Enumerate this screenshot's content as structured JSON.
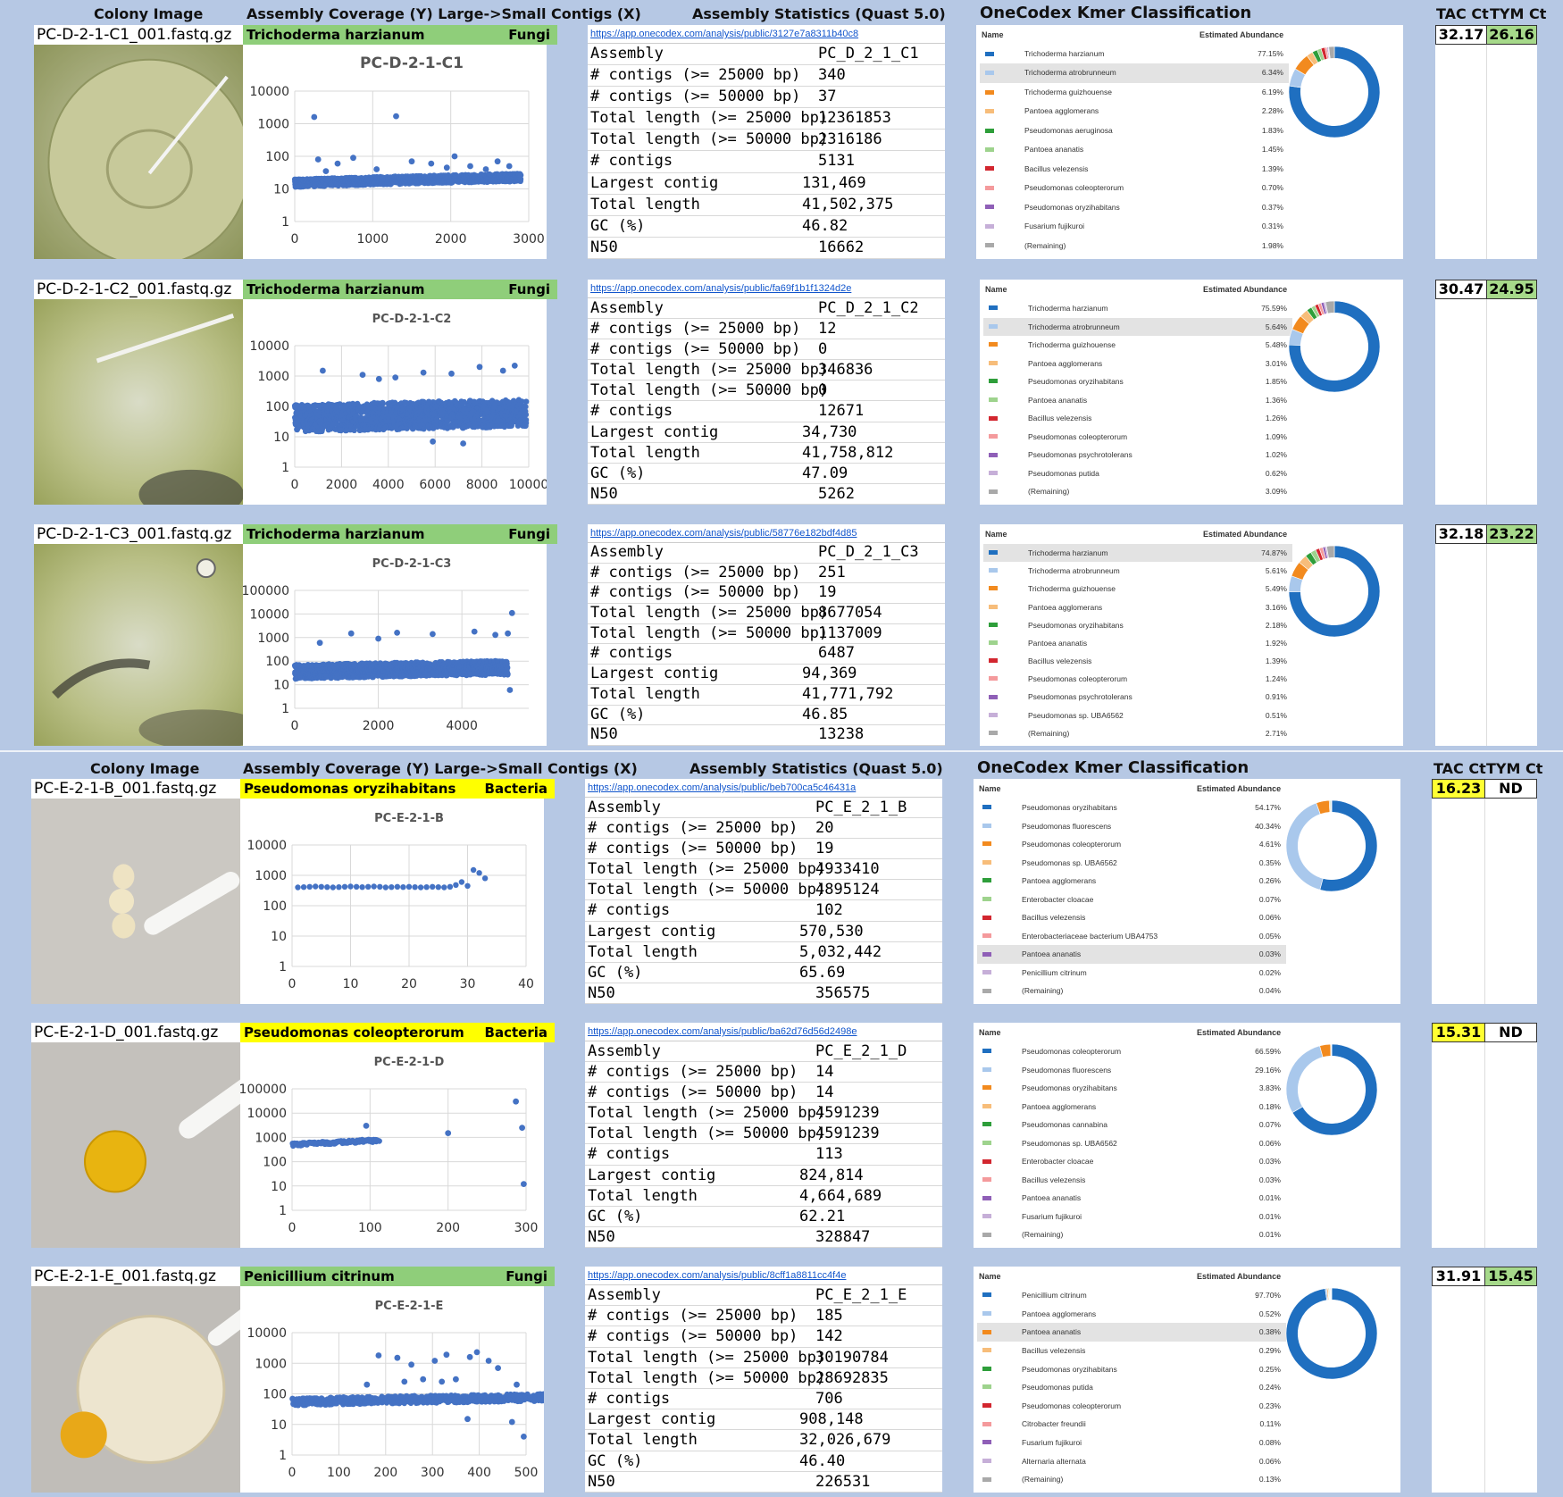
{
  "headers": {
    "colony_image": "Colony Image",
    "assembly_coverage": "Assembly Coverage (Y) Large->Small Contigs (X)",
    "assembly_stats": "Assembly Statistics (Quast 5.0)",
    "onecodex": "OneCodex Kmer Classification",
    "tac_ct": "TAC Ct",
    "tym_ct": "TYM Ct"
  },
  "kmer_headers": {
    "name": "Name",
    "abundance": "Estimated Abundance"
  },
  "stat_labels": [
    "Assembly",
    "# contigs (>= 25000 bp)",
    "# contigs (>= 50000 bp)",
    "Total length (>= 25000 bp)",
    "Total length (>= 50000 bp)",
    "# contigs",
    "Largest contig",
    "Total length",
    "GC (%)",
    "N50"
  ],
  "palette": [
    "#1f6fc0",
    "#a9c8ec",
    "#f28a1e",
    "#f7bd7a",
    "#2e9e3a",
    "#9ed38d",
    "#d2262f",
    "#f49a9c",
    "#8f5fb7",
    "#c6afd8",
    "#a9a9a9"
  ],
  "samples": [
    {
      "file": "PC-D-2-1-C1_001.fastq.gz",
      "organism": "Trichoderma harzianum",
      "kingdom": "Fungi",
      "tax_color": "#8fce7a",
      "chart_title": "PC-D-2-1-C1",
      "url": "https://app.onecodex.com/analysis/public/3127e7a8311b40c8",
      "stats": [
        "PC_D_2_1_C1",
        "340",
        "37",
        "12361853",
        "2316186",
        "5131",
        "131,469",
        "41,502,375",
        "46.82",
        "16662"
      ],
      "kmer": [
        [
          "Trichoderma harzianum",
          "77.15%"
        ],
        [
          "Trichoderma atrobrunneum",
          "6.34%"
        ],
        [
          "Trichoderma guizhouense",
          "6.19%"
        ],
        [
          "Pantoea agglomerans",
          "2.28%"
        ],
        [
          "Pseudomonas aeruginosa",
          "1.83%"
        ],
        [
          "Pantoea ananatis",
          "1.45%"
        ],
        [
          "Bacillus velezensis",
          "1.39%"
        ],
        [
          "Pseudomonas coleopterorum",
          "0.70%"
        ],
        [
          "Pseudomonas oryzihabitans",
          "0.37%"
        ],
        [
          "Fusarium fujikuroi",
          "0.31%"
        ],
        [
          "(Remaining)",
          "1.98%"
        ]
      ],
      "highlight": 1,
      "tac": "32.17",
      "tym": "26.16",
      "tac_color": "#ffffff",
      "tym_color": "#a6d98a",
      "photo": "fungus1"
    },
    {
      "file": "PC-D-2-1-C2_001.fastq.gz",
      "organism": "Trichoderma harzianum",
      "kingdom": "Fungi",
      "tax_color": "#8fce7a",
      "chart_title": "PC-D-2-1-C2",
      "url": "https://app.onecodex.com/analysis/public/fa69f1b1f1324d2e",
      "stats": [
        "PC_D_2_1_C2",
        "12",
        "0",
        "346836",
        "0",
        "12671",
        "34,730",
        "41,758,812",
        "47.09",
        "5262"
      ],
      "kmer": [
        [
          "Trichoderma harzianum",
          "75.59%"
        ],
        [
          "Trichoderma atrobrunneum",
          "5.64%"
        ],
        [
          "Trichoderma guizhouense",
          "5.48%"
        ],
        [
          "Pantoea agglomerans",
          "3.01%"
        ],
        [
          "Pseudomonas oryzihabitans",
          "1.85%"
        ],
        [
          "Pantoea ananatis",
          "1.36%"
        ],
        [
          "Bacillus velezensis",
          "1.26%"
        ],
        [
          "Pseudomonas coleopterorum",
          "1.09%"
        ],
        [
          "Pseudomonas psychrotolerans",
          "1.02%"
        ],
        [
          "Pseudomonas putida",
          "0.62%"
        ],
        [
          "(Remaining)",
          "3.09%"
        ]
      ],
      "highlight": 1,
      "tac": "30.47",
      "tym": "24.95",
      "tac_color": "#ffffff",
      "tym_color": "#a6d98a",
      "photo": "fungus2"
    },
    {
      "file": "PC-D-2-1-C3_001.fastq.gz",
      "organism": "Trichoderma harzianum",
      "kingdom": "Fungi",
      "tax_color": "#8fce7a",
      "chart_title": "PC-D-2-1-C3",
      "url": "https://app.onecodex.com/analysis/public/58776e182bdf4d85",
      "stats": [
        "PC_D_2_1_C3",
        "251",
        "19",
        "8677054",
        "1137009",
        "6487",
        "94,369",
        "41,771,792",
        "46.85",
        "13238"
      ],
      "kmer": [
        [
          "Trichoderma harzianum",
          "74.87%"
        ],
        [
          "Trichoderma atrobrunneum",
          "5.61%"
        ],
        [
          "Trichoderma guizhouense",
          "5.49%"
        ],
        [
          "Pantoea agglomerans",
          "3.16%"
        ],
        [
          "Pseudomonas oryzihabitans",
          "2.18%"
        ],
        [
          "Pantoea ananatis",
          "1.92%"
        ],
        [
          "Bacillus velezensis",
          "1.39%"
        ],
        [
          "Pseudomonas coleopterorum",
          "1.24%"
        ],
        [
          "Pseudomonas psychrotolerans",
          "0.91%"
        ],
        [
          "Pseudomonas sp. UBA6562",
          "0.51%"
        ],
        [
          "(Remaining)",
          "2.71%"
        ]
      ],
      "highlight": 0,
      "tac": "32.18",
      "tym": "23.22",
      "tac_color": "#ffffff",
      "tym_color": "#a6d98a",
      "photo": "fungus3"
    },
    {
      "file": "PC-E-2-1-B_001.fastq.gz",
      "organism": "Pseudomonas oryzihabitans",
      "kingdom": "Bacteria",
      "tax_color": "#ffff00",
      "chart_title": "PC-E-2-1-B",
      "url": "https://app.onecodex.com/analysis/public/beb700ca5c46431a",
      "stats": [
        "PC_E_2_1_B",
        "20",
        "19",
        "4933410",
        "4895124",
        "102",
        "570,530",
        "5,032,442",
        "65.69",
        "356575"
      ],
      "kmer": [
        [
          "Pseudomonas oryzihabitans",
          "54.17%"
        ],
        [
          "Pseudomonas fluorescens",
          "40.34%"
        ],
        [
          "Pseudomonas coleopterorum",
          "4.61%"
        ],
        [
          "Pseudomonas sp. UBA6562",
          "0.35%"
        ],
        [
          "Pantoea agglomerans",
          "0.26%"
        ],
        [
          "Enterobacter cloacae",
          "0.07%"
        ],
        [
          "Bacillus velezensis",
          "0.06%"
        ],
        [
          "Enterobacteriaceae bacterium UBA4753",
          "0.05%"
        ],
        [
          "Pantoea ananatis",
          "0.03%"
        ],
        [
          "Penicillium citrinum",
          "0.02%"
        ],
        [
          "(Remaining)",
          "0.04%"
        ]
      ],
      "highlight": 8,
      "tac": "16.23",
      "tym": "ND",
      "tac_color": "#ffff33",
      "tym_color": "#ffffff",
      "photo": "bact1"
    },
    {
      "file": "PC-E-2-1-D_001.fastq.gz",
      "organism": "Pseudomonas coleopterorum",
      "kingdom": "Bacteria",
      "tax_color": "#ffff00",
      "chart_title": "PC-E-2-1-D",
      "url": "https://app.onecodex.com/analysis/public/ba62d76d56d2498e",
      "stats": [
        "PC_E_2_1_D",
        "14",
        "14",
        "4591239",
        "4591239",
        "113",
        "824,814",
        "4,664,689",
        "62.21",
        "328847"
      ],
      "kmer": [
        [
          "Pseudomonas coleopterorum",
          "66.59%"
        ],
        [
          "Pseudomonas fluorescens",
          "29.16%"
        ],
        [
          "Pseudomonas oryzihabitans",
          "3.83%"
        ],
        [
          "Pantoea agglomerans",
          "0.18%"
        ],
        [
          "Pseudomonas cannabina",
          "0.07%"
        ],
        [
          "Pseudomonas sp. UBA6562",
          "0.06%"
        ],
        [
          "Enterobacter cloacae",
          "0.03%"
        ],
        [
          "Bacillus velezensis",
          "0.03%"
        ],
        [
          "Pantoea ananatis",
          "0.01%"
        ],
        [
          "Fusarium fujikuroi",
          "0.01%"
        ],
        [
          "(Remaining)",
          "0.01%"
        ]
      ],
      "highlight": -1,
      "tac": "15.31",
      "tym": "ND",
      "tac_color": "#ffff33",
      "tym_color": "#ffffff",
      "photo": "bact2"
    },
    {
      "file": "PC-E-2-1-E_001.fastq.gz",
      "organism": "Penicillium citrinum",
      "kingdom": "Fungi",
      "tax_color": "#8fce7a",
      "chart_title": "PC-E-2-1-E",
      "url": "https://app.onecodex.com/analysis/public/8cff1a8811cc4f4e",
      "stats": [
        "PC_E_2_1_E",
        "185",
        "142",
        "30190784",
        "28692835",
        "706",
        "908,148",
        "32,026,679",
        "46.40",
        "226531"
      ],
      "kmer": [
        [
          "Penicillium citrinum",
          "97.70%"
        ],
        [
          "Pantoea agglomerans",
          "0.52%"
        ],
        [
          "Pantoea ananatis",
          "0.38%"
        ],
        [
          "Bacillus velezensis",
          "0.29%"
        ],
        [
          "Pseudomonas oryzihabitans",
          "0.25%"
        ],
        [
          "Pseudomonas putida",
          "0.24%"
        ],
        [
          "Pseudomonas coleopterorum",
          "0.23%"
        ],
        [
          "Citrobacter freundii",
          "0.11%"
        ],
        [
          "Fusarium fujikuroi",
          "0.08%"
        ],
        [
          "Alternaria alternata",
          "0.06%"
        ],
        [
          "(Remaining)",
          "0.13%"
        ]
      ],
      "highlight": 2,
      "tac": "31.91",
      "tym": "15.45",
      "tac_color": "#ffffff",
      "tym_color": "#a6d98a",
      "photo": "mold"
    }
  ],
  "chart_data": [
    {
      "type": "scatter",
      "title": "PC-D-2-1-C1",
      "xlabel": "",
      "ylabel": "",
      "scale_y": "log",
      "xlim": [
        0,
        3000
      ],
      "ylim": [
        1,
        10000
      ],
      "x_ticks": [
        "0",
        "1000",
        "2000",
        "3000"
      ],
      "y_ticks": [
        "1",
        "10",
        "100",
        "1000",
        "10000"
      ],
      "n_points": 2900,
      "baseline": 15,
      "spread": 0.12,
      "outliers": [
        [
          250,
          1600
        ],
        [
          1300,
          1700
        ],
        [
          300,
          80
        ],
        [
          550,
          60
        ],
        [
          750,
          90
        ],
        [
          1500,
          70
        ],
        [
          1750,
          60
        ],
        [
          2050,
          100
        ],
        [
          2250,
          50
        ],
        [
          2600,
          70
        ],
        [
          2750,
          50
        ],
        [
          400,
          35
        ],
        [
          1050,
          40
        ],
        [
          1950,
          45
        ],
        [
          2450,
          40
        ]
      ]
    },
    {
      "type": "scatter",
      "title": "PC-D-2-1-C2",
      "xlabel": "",
      "ylabel": "",
      "scale_y": "log",
      "xlim": [
        0,
        10000
      ],
      "ylim": [
        1,
        10000
      ],
      "x_ticks": [
        "0",
        "2000",
        "4000",
        "6000",
        "8000",
        "10000"
      ],
      "y_ticks": [
        "1",
        "10",
        "100",
        "1000",
        "10000"
      ],
      "n_points": 9900,
      "baseline": 40,
      "spread": 0.45,
      "outliers": [
        [
          1200,
          1500
        ],
        [
          2900,
          1100
        ],
        [
          4300,
          900
        ],
        [
          5500,
          1300
        ],
        [
          6700,
          1200
        ],
        [
          7900,
          2000
        ],
        [
          8900,
          1500
        ],
        [
          9400,
          2200
        ],
        [
          3600,
          800
        ],
        [
          5900,
          7
        ],
        [
          7200,
          6
        ]
      ]
    },
    {
      "type": "scatter",
      "title": "PC-D-2-1-C3",
      "xlabel": "",
      "ylabel": "",
      "scale_y": "log",
      "xlim": [
        0,
        5600
      ],
      "ylim": [
        1,
        100000
      ],
      "x_ticks": [
        "0",
        "2000",
        "4000"
      ],
      "y_ticks": [
        "1",
        "10",
        "100",
        "1000",
        "10000",
        "100000"
      ],
      "n_points": 5100,
      "baseline": 35,
      "spread": 0.3,
      "outliers": [
        [
          5200,
          11000
        ],
        [
          1350,
          1500
        ],
        [
          2450,
          1600
        ],
        [
          3300,
          1400
        ],
        [
          4300,
          1800
        ],
        [
          4800,
          1300
        ],
        [
          5100,
          1500
        ],
        [
          600,
          600
        ],
        [
          2000,
          900
        ],
        [
          5150,
          6
        ]
      ]
    },
    {
      "type": "scatter",
      "title": "PC-E-2-1-B",
      "xlabel": "",
      "ylabel": "",
      "scale_y": "log",
      "xlim": [
        0,
        40
      ],
      "ylim": [
        1,
        10000
      ],
      "x_ticks": [
        "0",
        "10",
        "20",
        "30",
        "40"
      ],
      "y_ticks": [
        "1",
        "10",
        "100",
        "1000",
        "10000"
      ],
      "x": [
        1,
        2,
        3,
        4,
        5,
        6,
        7,
        8,
        9,
        10,
        11,
        12,
        13,
        14,
        15,
        16,
        17,
        18,
        19,
        20,
        21,
        22,
        23,
        24,
        25,
        26,
        27,
        28,
        29,
        30,
        31,
        32,
        33
      ],
      "y": [
        400,
        410,
        420,
        430,
        420,
        410,
        400,
        410,
        420,
        430,
        420,
        410,
        420,
        430,
        420,
        400,
        410,
        420,
        410,
        420,
        410,
        400,
        410,
        420,
        410,
        400,
        420,
        480,
        600,
        450,
        1500,
        1200,
        800
      ]
    },
    {
      "type": "scatter",
      "title": "PC-E-2-1-D",
      "xlabel": "",
      "ylabel": "",
      "scale_y": "log",
      "xlim": [
        0,
        300
      ],
      "ylim": [
        1,
        100000
      ],
      "x_ticks": [
        "0",
        "100",
        "200",
        "300"
      ],
      "y_ticks": [
        "1",
        "10",
        "100",
        "1000",
        "10000",
        "100000"
      ],
      "n_points": 112,
      "baseline": 500,
      "spread": 0.06,
      "outliers": [
        [
          95,
          3000
        ],
        [
          200,
          1500
        ],
        [
          287,
          30000
        ],
        [
          295,
          2500
        ],
        [
          297,
          12
        ]
      ]
    },
    {
      "type": "scatter",
      "title": "PC-E-2-1-E",
      "xlabel": "",
      "ylabel": "",
      "scale_y": "log",
      "xlim": [
        0,
        500
      ],
      "ylim": [
        1,
        10000
      ],
      "x_ticks": [
        "0",
        "100",
        "200",
        "300",
        "400",
        "500"
      ],
      "y_ticks": [
        "1",
        "10",
        "100",
        "1000",
        "10000"
      ],
      "n_points": 700,
      "baseline": 55,
      "spread": 0.12,
      "outliers": [
        [
          185,
          1800
        ],
        [
          225,
          1500
        ],
        [
          255,
          900
        ],
        [
          305,
          1200
        ],
        [
          330,
          1900
        ],
        [
          380,
          1600
        ],
        [
          395,
          2300
        ],
        [
          420,
          1200
        ],
        [
          440,
          700
        ],
        [
          160,
          200
        ],
        [
          240,
          250
        ],
        [
          280,
          300
        ],
        [
          320,
          250
        ],
        [
          350,
          300
        ],
        [
          480,
          200
        ],
        [
          375,
          15
        ],
        [
          470,
          12
        ],
        [
          495,
          4
        ]
      ]
    }
  ]
}
